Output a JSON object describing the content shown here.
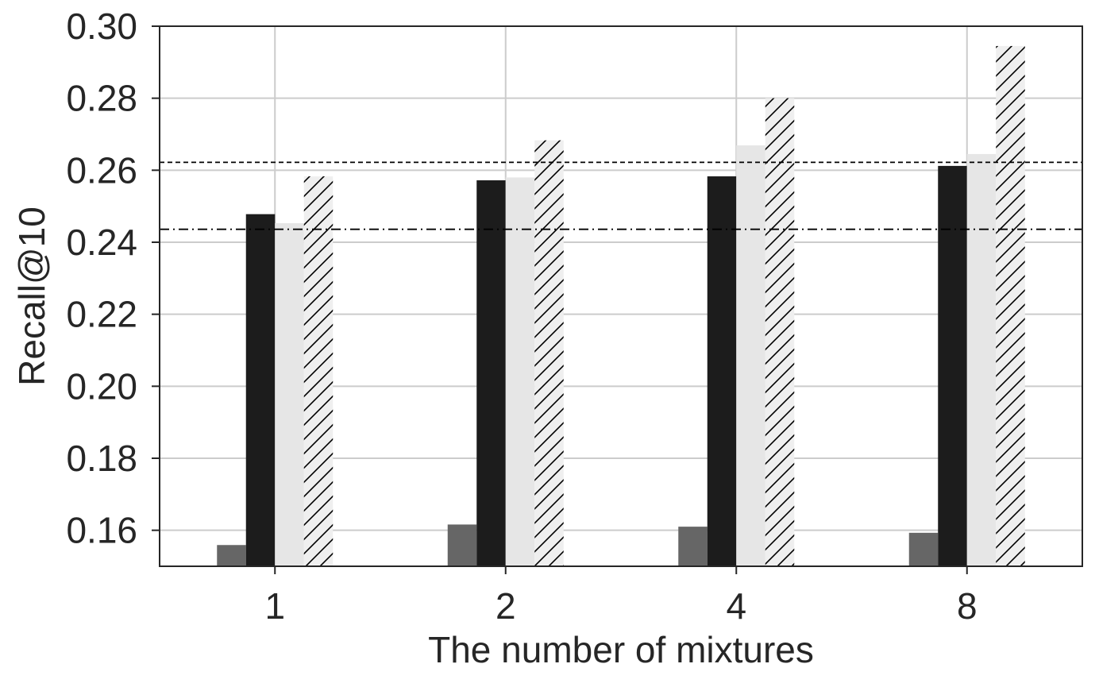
{
  "chart_data": {
    "type": "bar",
    "xlabel": "The number of mixtures",
    "ylabel": "Recall@10",
    "categories": [
      "1",
      "2",
      "4",
      "8"
    ],
    "ylim": [
      0.15,
      0.3
    ],
    "yticks": [
      "0.16",
      "0.18",
      "0.20",
      "0.22",
      "0.24",
      "0.26",
      "0.28",
      "0.30"
    ],
    "grid": true,
    "legend": "none",
    "series": [
      {
        "values": [
          0.1559,
          0.1616,
          0.161,
          0.1593
        ],
        "color": "#666666",
        "pattern": "solid"
      },
      {
        "values": [
          0.2478,
          0.2572,
          0.2583,
          0.2612
        ],
        "color": "#1c1c1c",
        "pattern": "solid"
      },
      {
        "values": [
          0.2453,
          0.258,
          0.2669,
          0.2645
        ],
        "color": "#e6e6e6",
        "pattern": "solid"
      },
      {
        "values": [
          0.2583,
          0.2683,
          0.28,
          0.2945
        ],
        "color": "#efefef",
        "pattern": "hatch"
      }
    ],
    "reference_lines": [
      {
        "value": 0.2622,
        "style": "dashed",
        "color": "#000000"
      },
      {
        "value": 0.2436,
        "style": "dashdot",
        "color": "#000000"
      }
    ]
  }
}
